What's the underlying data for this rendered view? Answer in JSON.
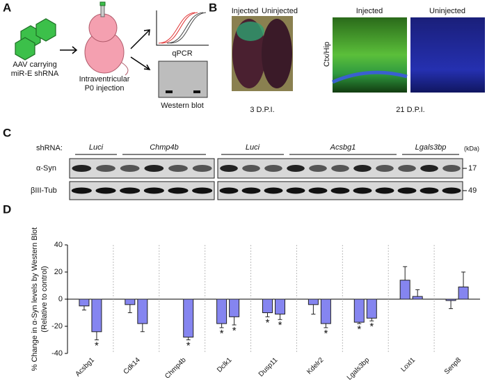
{
  "panel_a": {
    "letter": "A",
    "vector": [
      "AAV carrying",
      "miR-E shRNA"
    ],
    "injection": [
      "Intraventricular",
      "P0 injection"
    ],
    "qpcr": "qPCR",
    "western": "Western blot"
  },
  "panel_b": {
    "letter": "B",
    "left_labels": [
      "Injected",
      "Uninjected"
    ],
    "left_caption": "3 D.P.I.",
    "region": "Ctx/Hip",
    "right_labels": [
      "Injected",
      "Uninjected"
    ],
    "right_caption": "21 D.P.I."
  },
  "panel_c": {
    "letter": "C",
    "shrna_label": "shRNA:",
    "groups": [
      "Luci",
      "Chmp4b",
      "Luci",
      "Acsbg1",
      "Lgals3bp"
    ],
    "rows": [
      "α-Syn",
      "βIII-Tub"
    ],
    "unit": "(kDa)",
    "markers": [
      "17",
      "49"
    ]
  },
  "panel_d": {
    "letter": "D"
  },
  "chart_data": {
    "type": "bar",
    "ylabel": [
      "% Change in α-Syn levels by Western Blot",
      "(Relative to control)"
    ],
    "categories": [
      "Acsbg1",
      "Cdk14",
      "Chmp4b",
      "Dclk1",
      "Dusp11",
      "Kdelr2",
      "Lgals3bp",
      "Loxl1",
      "Senp8"
    ],
    "series": [
      {
        "color": "#8585f0",
        "values": [
          -5,
          -4,
          null,
          -18,
          -10,
          -4,
          -17,
          14,
          -1
        ],
        "errors": [
          3,
          6,
          null,
          3,
          3,
          7,
          1,
          10,
          6
        ],
        "significance": [
          null,
          null,
          null,
          "*",
          "*",
          null,
          "*",
          null,
          null
        ]
      },
      {
        "color": "#8585f0",
        "values": [
          -24,
          -18,
          -28,
          -13,
          -11,
          -18,
          -14,
          2,
          9
        ],
        "errors": [
          6,
          6,
          2,
          6,
          4,
          3,
          2,
          5,
          11
        ],
        "significance": [
          "*",
          null,
          "*",
          "*",
          "*",
          "*",
          "*",
          null,
          null
        ]
      }
    ],
    "ylim": [
      -40,
      40
    ],
    "yticks": [
      -40,
      -20,
      0,
      20,
      40
    ],
    "separators": true
  }
}
